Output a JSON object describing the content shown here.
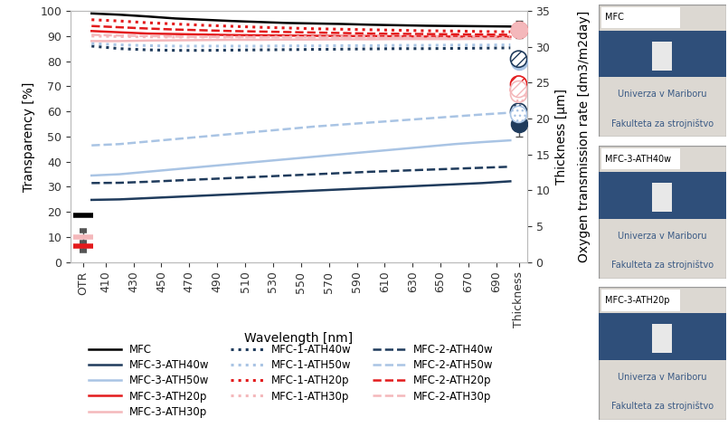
{
  "chart_data": {
    "type": "line",
    "x_label": "Wavelength [nm]",
    "y_label": "Transparency [%]",
    "y2_labels": [
      "Thickness [μm]",
      "Oxygen transmission rate [dm3/m2day]"
    ],
    "x": [
      400,
      420,
      440,
      460,
      480,
      500,
      520,
      540,
      560,
      580,
      600,
      620,
      640,
      660,
      680,
      700
    ],
    "xlim": [
      385,
      712
    ],
    "xticks": [
      {
        "value": 394,
        "label": "OTR"
      },
      410,
      430,
      450,
      470,
      490,
      510,
      530,
      550,
      570,
      590,
      610,
      630,
      650,
      670,
      690,
      {
        "value": 706,
        "label": "Thickness"
      }
    ],
    "ylim": [
      0,
      100
    ],
    "yticks": [
      0,
      10,
      20,
      30,
      40,
      50,
      60,
      70,
      80,
      90,
      100
    ],
    "y2lim": [
      0,
      35
    ],
    "y2ticks": [
      0,
      5,
      10,
      15,
      20,
      25,
      30,
      35
    ],
    "grid": false,
    "legend": "upper center",
    "series": [
      {
        "name": "MFC",
        "color": "#000000",
        "line_style": "solid",
        "values": [
          99,
          98.5,
          97.8,
          97,
          96.5,
          96,
          95.6,
          95.2,
          95,
          94.8,
          94.5,
          94.3,
          94.1,
          94,
          93.9,
          93.8
        ],
        "otr": 6.5
      },
      {
        "name": "MFC-3-ATH40w",
        "color": "#1f3b5c",
        "line_style": "solid",
        "values": [
          24.8,
          25,
          25.5,
          26,
          26.5,
          27,
          27.5,
          28,
          28.5,
          29,
          29.5,
          30,
          30.5,
          31,
          31.5,
          32.2
        ],
        "thickness": 19.3,
        "thickness_error": 1.8
      },
      {
        "name": "MFC-3-ATH50w",
        "color": "#a9c4e4",
        "line_style": "solid",
        "values": [
          34.5,
          35,
          36,
          37,
          38,
          39,
          40,
          41,
          42,
          43,
          44,
          45,
          46,
          47,
          47.8,
          48.5
        ],
        "thickness": 28.0
      },
      {
        "name": "MFC-3-ATH20p",
        "color": "#e31a1c",
        "line_style": "solid",
        "values": [
          92,
          91.5,
          91,
          90.8,
          90.6,
          90.4,
          90.3,
          90.2,
          90.1,
          90,
          90,
          89.9,
          89.8,
          89.8,
          89.7,
          89.7
        ],
        "otr": 2.2,
        "otr_error": 0.6,
        "thickness": 32.4,
        "thickness_error": 1.2
      },
      {
        "name": "MFC-3-ATH30p",
        "color": "#f4b8bb",
        "line_style": "solid",
        "values": [
          88,
          88,
          88.2,
          88.3,
          88.4,
          88.5,
          88.5,
          88.6,
          88.6,
          88.7,
          88.7,
          88.8,
          88.8,
          88.8,
          88.9,
          88.9
        ],
        "otr": 3.5,
        "otr_error": 0.9,
        "thickness": 32.4,
        "thickness_error": 1.0
      },
      {
        "name": "MFC-1-ATH40w",
        "color": "#1f3b5c",
        "line_style": "dotted",
        "values": [
          86,
          85,
          84.5,
          84.3,
          84.3,
          84.4,
          84.5,
          84.6,
          84.7,
          84.8,
          84.9,
          85,
          85,
          85.1,
          85.2,
          85.3
        ],
        "thickness": 21.0
      },
      {
        "name": "MFC-1-ATH50w",
        "color": "#a9c4e4",
        "line_style": "dotted",
        "values": [
          87,
          86.5,
          86.2,
          86,
          86,
          86,
          86,
          86.1,
          86.1,
          86.2,
          86.2,
          86.3,
          86.3,
          86.4,
          86.4,
          86.5
        ],
        "thickness": 20.6
      },
      {
        "name": "MFC-1-ATH20p",
        "color": "#e31a1c",
        "line_style": "dotted",
        "values": [
          96.5,
          96,
          95.3,
          94.8,
          94.3,
          93.9,
          93.5,
          93.2,
          92.9,
          92.7,
          92.5,
          92.3,
          92.1,
          92,
          91.8,
          91.7
        ],
        "thickness": 24.0
      },
      {
        "name": "MFC-1-ATH30p",
        "color": "#f4b8bb",
        "line_style": "dotted",
        "values": [
          90,
          89.8,
          89.7,
          89.6,
          89.6,
          89.6,
          89.6,
          89.7,
          89.7,
          89.7,
          89.8,
          89.8,
          89.8,
          89.9,
          89.9,
          90
        ],
        "thickness": 23.4
      },
      {
        "name": "MFC-2-ATH40w",
        "color": "#1f3b5c",
        "line_style": "dashed",
        "values": [
          31.5,
          31.6,
          32,
          32.5,
          33,
          33.5,
          34,
          34.5,
          35,
          35.5,
          36,
          36.4,
          36.8,
          37.2,
          37.6,
          38
        ],
        "thickness": 28.3
      },
      {
        "name": "MFC-2-ATH50w",
        "color": "#a9c4e4",
        "line_style": "dashed",
        "values": [
          46.5,
          47,
          48,
          49,
          50,
          51,
          52,
          53,
          54,
          54.8,
          55.6,
          56.4,
          57.2,
          58,
          58.8,
          59.5
        ],
        "thickness": 24.5
      },
      {
        "name": "MFC-2-ATH20p",
        "color": "#e31a1c",
        "line_style": "dashed",
        "values": [
          94,
          93.5,
          93,
          92.6,
          92.3,
          92,
          91.8,
          91.6,
          91.4,
          91.2,
          91,
          90.9,
          90.8,
          90.7,
          90.6,
          90.5
        ],
        "thickness": 24.8
      },
      {
        "name": "MFC-2-ATH30p",
        "color": "#f4b8bb",
        "line_style": "dashed",
        "values": [
          90.5,
          90.2,
          90,
          89.8,
          89.7,
          89.6,
          89.5,
          89.5,
          89.4,
          89.4,
          89.3,
          89.3,
          89.2,
          89.2,
          89.1,
          89.1
        ],
        "thickness": 24.1
      }
    ]
  },
  "photos": [
    {
      "label": "MFC",
      "lines": [
        "Univerza v Mariboru",
        "Fakulteta za strojništvo"
      ]
    },
    {
      "label": "MFC-3-ATH40w",
      "lines": [
        "Univerza v Mariboru",
        "Fakulteta za strojništvo"
      ]
    },
    {
      "label": "MFC-3-ATH20p",
      "lines": [
        "Univerza v Mariboru",
        "Fakulteta za strojništvo"
      ]
    }
  ]
}
